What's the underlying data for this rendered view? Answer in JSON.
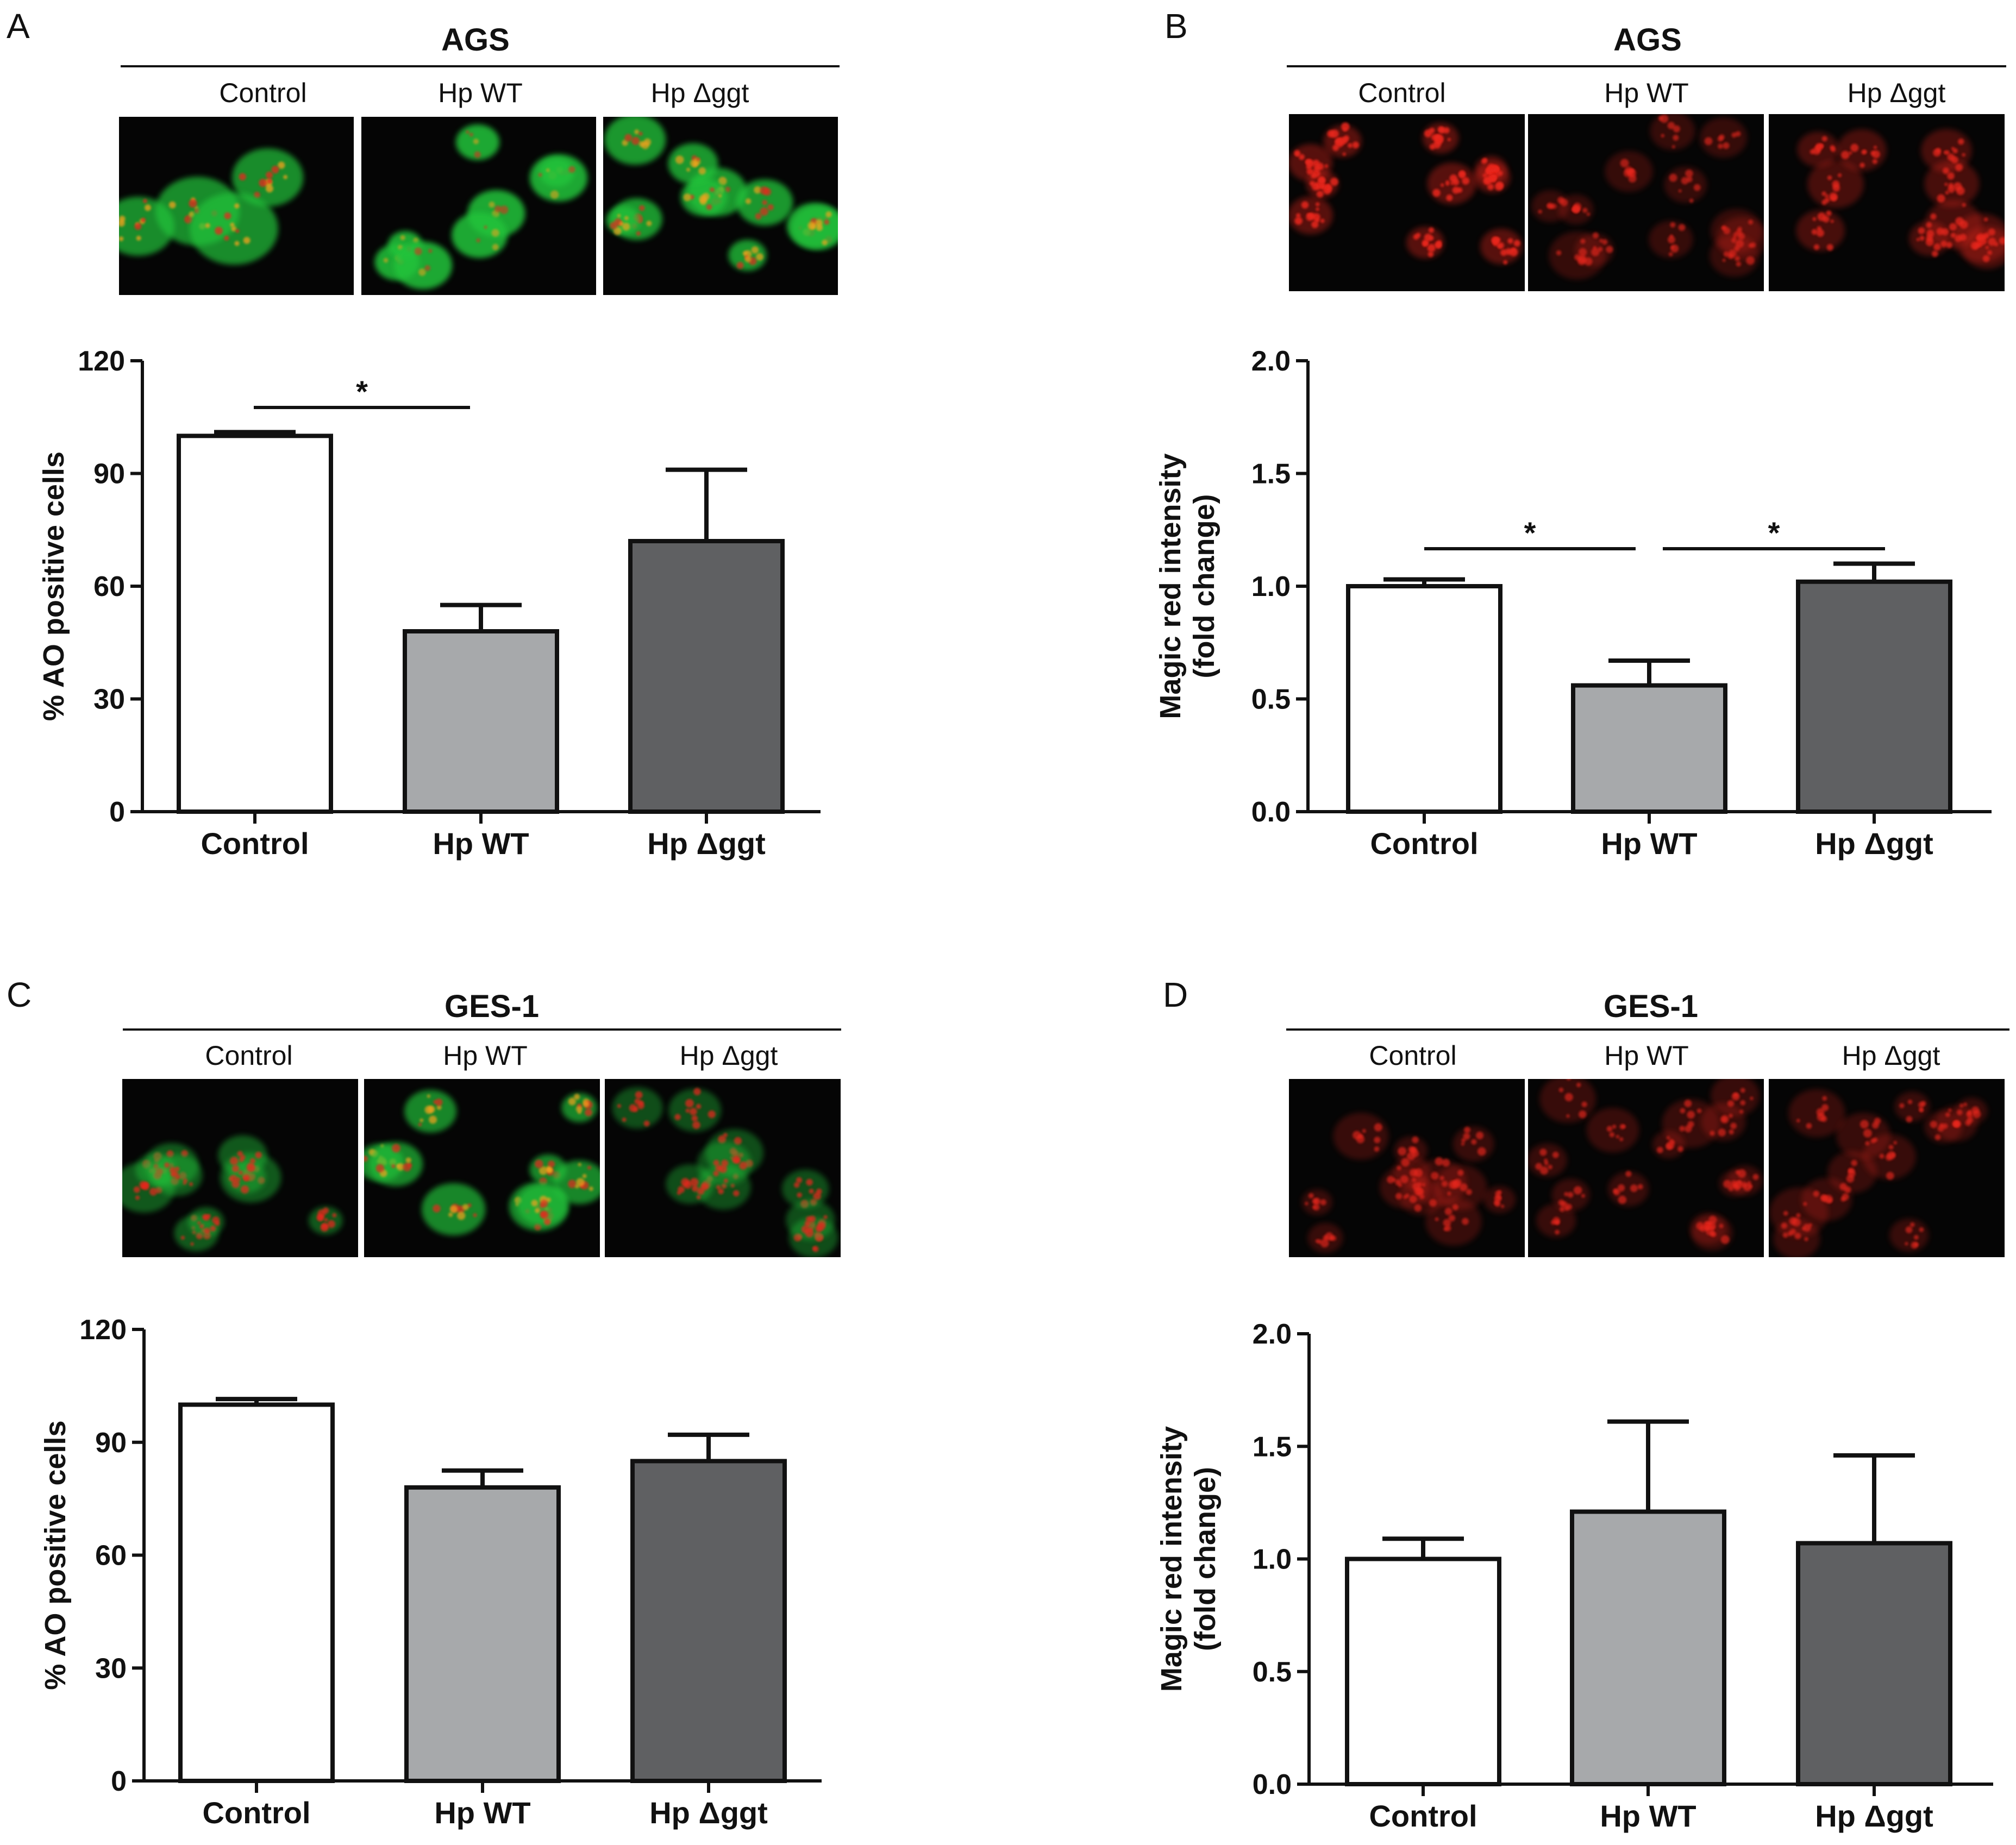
{
  "colors": {
    "bar_control": "#ffffff",
    "bar_wt": "#a7a9ab",
    "bar_dggt": "#5f6062",
    "axis": "#111111",
    "micrograph_bg": "#050505",
    "green_stain": "#22c33a",
    "red_stain": "#e8261e",
    "orange_stain": "#f4a31f"
  },
  "panels": [
    {
      "letter": "A",
      "cell_line": "AGS",
      "image_labels": [
        "Control",
        "Hp WT",
        "Hp Δggt"
      ],
      "stain": "AO",
      "micrographs": [
        {
          "cells": 4,
          "green": 0.6,
          "red": 0.5
        },
        {
          "cells": 8,
          "green": 0.85,
          "red": 0.1
        },
        {
          "cells": 10,
          "green": 0.7,
          "red": 0.35
        }
      ]
    },
    {
      "letter": "B",
      "cell_line": "AGS",
      "image_labels": [
        "Control",
        "Hp WT",
        "Hp Δggt"
      ],
      "stain": "MR",
      "micrographs": [
        {
          "cells": 10,
          "green": 0,
          "red": 0.7
        },
        {
          "cells": 12,
          "green": 0,
          "red": 0.25
        },
        {
          "cells": 10,
          "green": 0,
          "red": 0.5
        }
      ]
    },
    {
      "letter": "C",
      "cell_line": "GES-1",
      "image_labels": [
        "Control",
        "Hp WT",
        "Hp Δggt"
      ],
      "stain": "AO",
      "micrographs": [
        {
          "cells": 10,
          "green": 0.15,
          "red": 0.45
        },
        {
          "cells": 9,
          "green": 0.55,
          "red": 0.4
        },
        {
          "cells": 9,
          "green": 0.05,
          "red": 0.45
        }
      ]
    },
    {
      "letter": "D",
      "cell_line": "GES-1",
      "image_labels": [
        "Control",
        "Hp WT",
        "Hp Δggt"
      ],
      "stain": "MR",
      "micrographs": [
        {
          "cells": 12,
          "green": 0,
          "red": 0.3
        },
        {
          "cells": 14,
          "green": 0,
          "red": 0.3
        },
        {
          "cells": 12,
          "green": 0,
          "red": 0.3
        }
      ]
    }
  ],
  "chart_data": [
    {
      "panel": "A",
      "type": "bar",
      "categories": [
        "Control",
        "Hp WT",
        "Hp Δggt"
      ],
      "values": [
        100,
        48,
        72
      ],
      "errors": [
        1,
        7,
        19
      ],
      "ylabel": "% AO positive cells",
      "ylim": [
        0,
        120
      ],
      "yticks": [
        "0",
        "30",
        "60",
        "90",
        "120"
      ],
      "significance": [
        {
          "from": 0,
          "to": 1,
          "label": "*"
        }
      ]
    },
    {
      "panel": "B",
      "type": "bar",
      "categories": [
        "Control",
        "Hp WT",
        "Hp Δggt"
      ],
      "values": [
        1.0,
        0.56,
        1.02
      ],
      "errors": [
        0.03,
        0.11,
        0.08
      ],
      "ylabel": "Magic red intensity",
      "ylabel2": "(fold change)",
      "ylim": [
        0,
        2.0
      ],
      "yticks": [
        "0.0",
        "0.5",
        "1.0",
        "1.5",
        "2.0"
      ],
      "significance": [
        {
          "from": 0,
          "to": 1,
          "label": "*"
        },
        {
          "from": 1,
          "to": 2,
          "label": "*"
        }
      ]
    },
    {
      "panel": "C",
      "type": "bar",
      "categories": [
        "Control",
        "Hp WT",
        "Hp Δggt"
      ],
      "values": [
        100,
        78,
        85
      ],
      "errors": [
        1.5,
        4.5,
        7
      ],
      "ylabel": "% AO positive cells",
      "ylim": [
        0,
        120
      ],
      "yticks": [
        "0",
        "30",
        "60",
        "90",
        "120"
      ],
      "significance": []
    },
    {
      "panel": "D",
      "type": "bar",
      "categories": [
        "Control",
        "Hp WT",
        "Hp Δggt"
      ],
      "values": [
        1.0,
        1.21,
        1.07
      ],
      "errors": [
        0.09,
        0.4,
        0.39
      ],
      "ylabel": "Magic red intensity",
      "ylabel2": "(fold change)",
      "ylim": [
        0,
        2.0
      ],
      "yticks": [
        "0.0",
        "0.5",
        "1.0",
        "1.5",
        "2.0"
      ],
      "significance": []
    }
  ]
}
